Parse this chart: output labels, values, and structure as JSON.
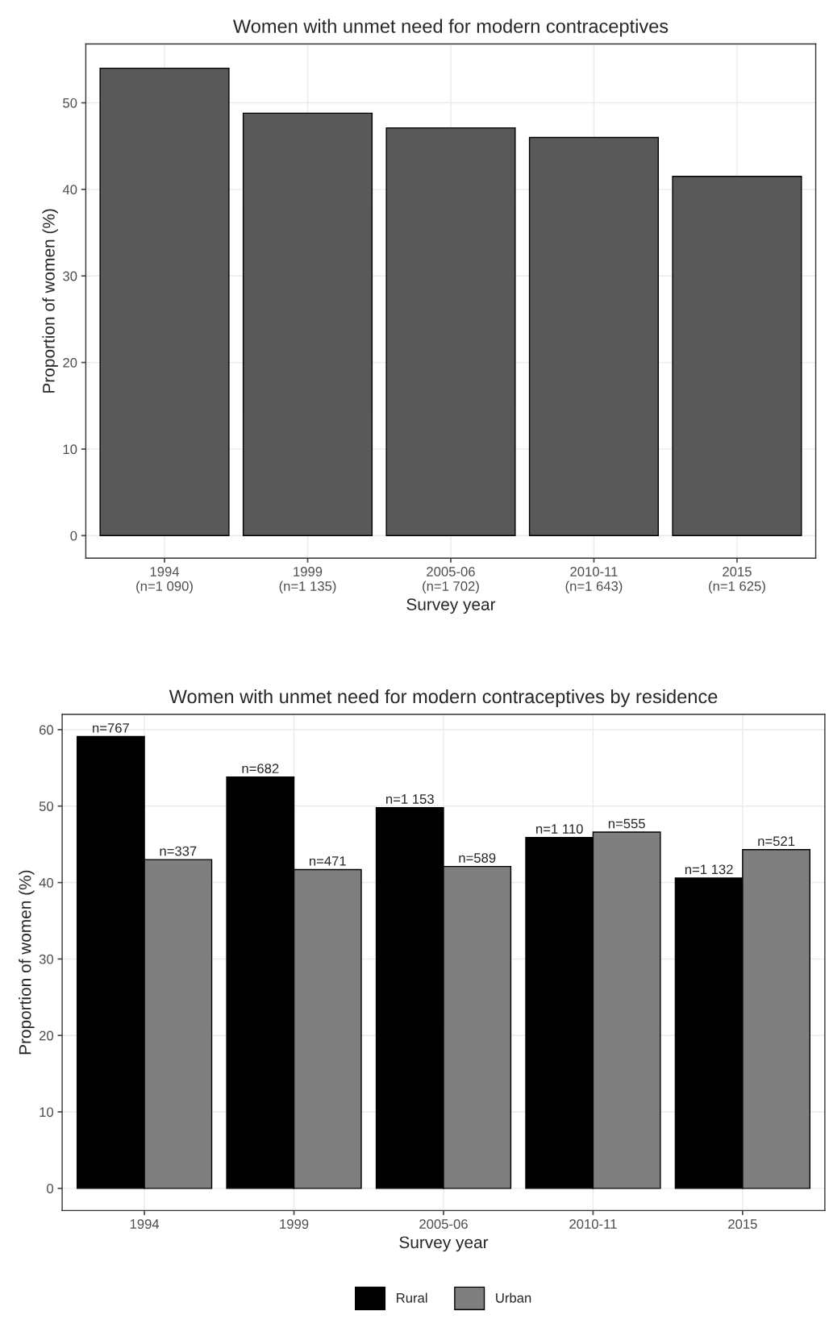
{
  "chart_data": [
    {
      "type": "bar",
      "title": "Women with unmet need for modern contraceptives",
      "xlabel": "Survey year",
      "ylabel": "Proportion of women (%)",
      "categories": [
        "1994\n(n=1 090)",
        "1999\n(n=1 135)",
        "2005-06\n(n=1 702)",
        "2010-11\n(n=1 643)",
        "2015\n(n=1 625)"
      ],
      "values": [
        54,
        48.8,
        47.1,
        46,
        41.5
      ],
      "color": "#595959",
      "ylim": [
        -2.6,
        56.8
      ],
      "yticks": [
        0,
        10,
        20,
        30,
        40,
        50
      ],
      "grid": true
    },
    {
      "type": "bar",
      "title": "Women with unmet need for modern contraceptives by residence",
      "xlabel": "Survey year",
      "ylabel": "Proportion of women (%)",
      "categories": [
        "1994",
        "1999",
        "2005-06",
        "2010-11",
        "2015"
      ],
      "series": [
        {
          "name": "Rural",
          "color": "#000000",
          "values": [
            59.1,
            53.8,
            49.8,
            45.9,
            40.6
          ]
        },
        {
          "name": "Urban",
          "color": "#7f7f7f",
          "values": [
            43,
            41.7,
            42.1,
            46.6,
            44.3
          ]
        }
      ],
      "annotations": [
        {
          "text": "n=767",
          "x": "1994",
          "y": 59.1
        },
        {
          "text": "n=682",
          "x": "1999",
          "y": 53.8
        },
        {
          "text": "n=1 153",
          "x": "2005-06",
          "y": 49.8
        },
        {
          "text": "n=1 110",
          "x": "2010-11",
          "y": 45.9
        },
        {
          "text": "n=1 132",
          "x": "2015",
          "y": 40.6
        },
        {
          "text": "n=337",
          "x": "1994",
          "y": 43
        },
        {
          "text": "n=471",
          "x": "1999",
          "y": 41.7
        },
        {
          "text": "n=589",
          "x": "2005-06",
          "y": 42.1
        },
        {
          "text": "n=555",
          "x": "2010-11",
          "y": 46.6
        },
        {
          "text": "n=521",
          "x": "2015",
          "y": 44.3
        }
      ],
      "ylim": [
        -2.9,
        62
      ],
      "yticks": [
        0,
        10,
        20,
        30,
        40,
        50,
        60
      ],
      "grid": true,
      "legend": "bottom"
    }
  ]
}
